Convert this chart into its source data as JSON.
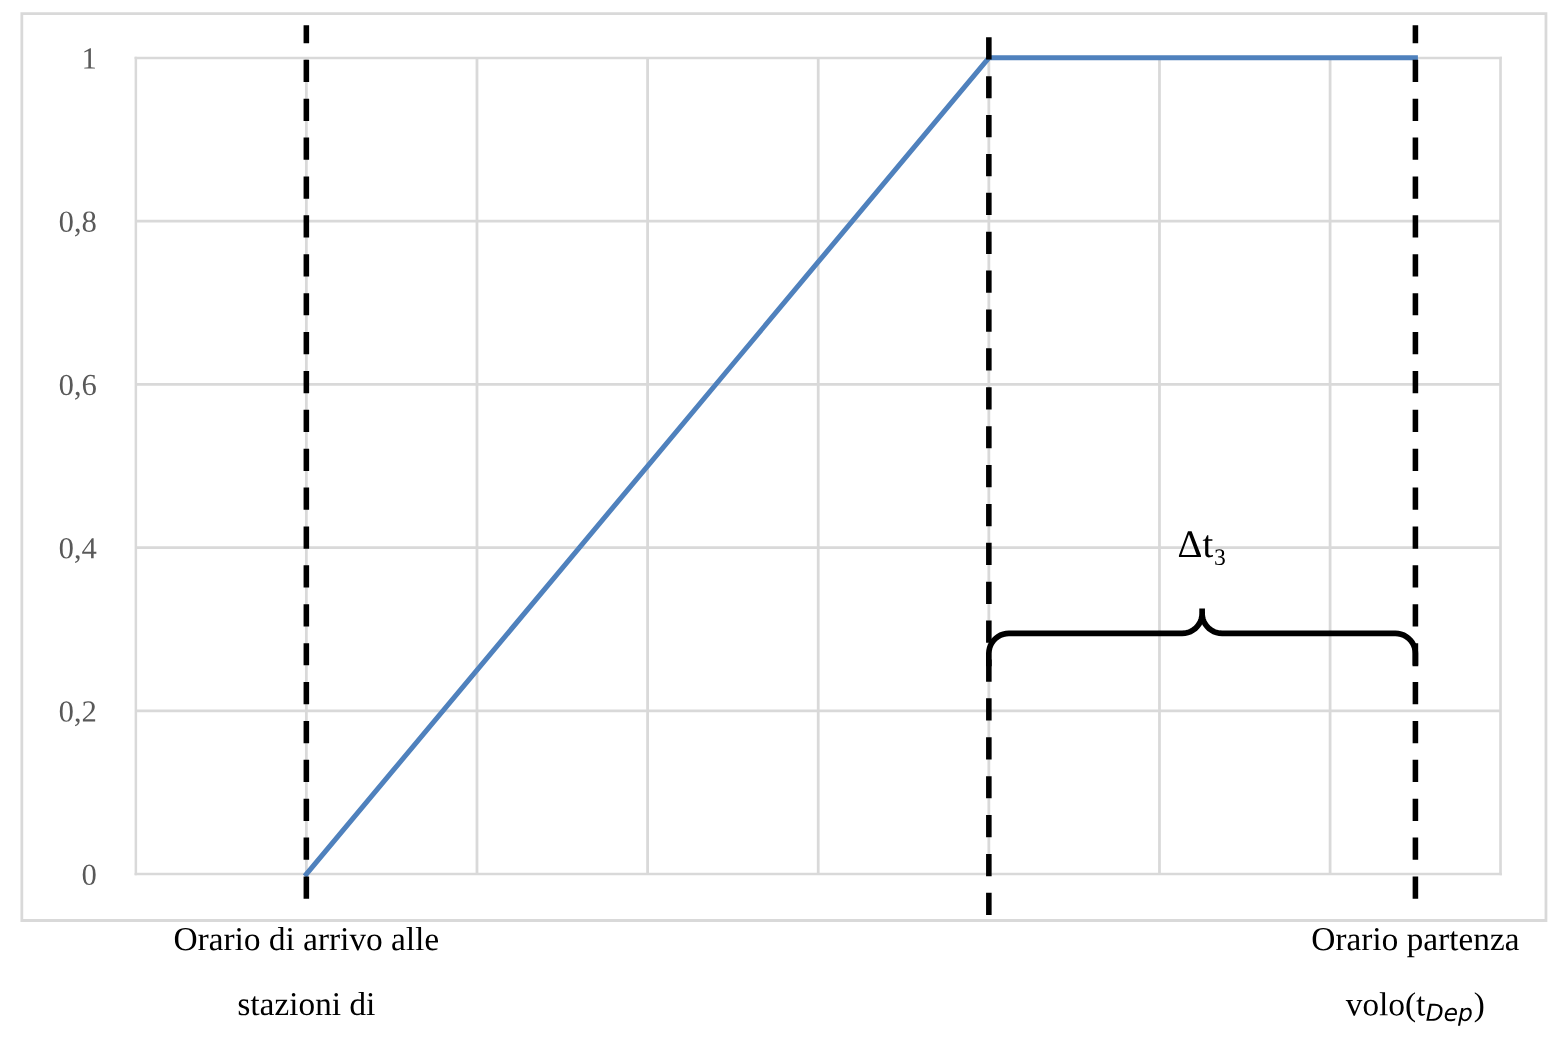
{
  "chart_data": {
    "type": "line",
    "categories": [
      null,
      null,
      null,
      null,
      null,
      null,
      null,
      null,
      null,
      null,
      null,
      null,
      null,
      null,
      null,
      null,
      null
    ],
    "series": [
      {
        "color": "#4f81bd",
        "values": [
          null,
          null,
          0,
          0.125,
          0.25,
          0.375,
          0.5,
          0.625,
          0.75,
          0.875,
          1,
          1,
          1,
          1,
          1,
          1,
          null
        ]
      }
    ],
    "ylim": [
      0,
      1
    ],
    "yticks": [
      {
        "value": 0,
        "label": "0"
      },
      {
        "value": 0.2,
        "label": "0,2"
      },
      {
        "value": 0.4,
        "label": "0,4"
      },
      {
        "value": 0.6,
        "label": "0,6"
      },
      {
        "value": 0.8,
        "label": "0,8"
      },
      {
        "value": 1,
        "label": "1"
      }
    ],
    "grid": true,
    "marker": "none",
    "line_style": "solid",
    "annotations": [
      "Orario di arrivo alle\nstazioni di",
      "Δt₃",
      "Orario partenza\nvolo(t$_{Dep}$)"
    ]
  }
}
